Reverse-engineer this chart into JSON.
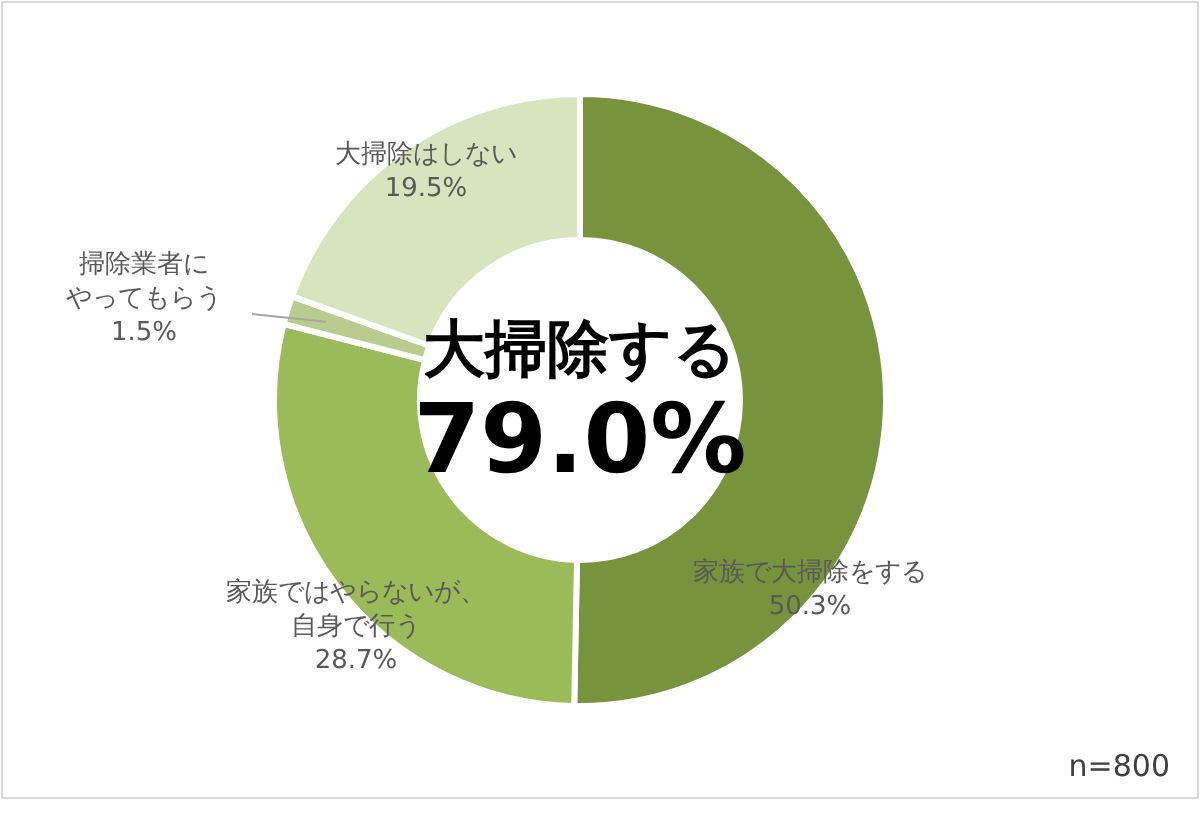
{
  "chart_data": {
    "type": "donut",
    "categories": [
      "家族で大掃除をする",
      "家族ではやらないが、自身で行う",
      "掃除業者にやってもらう",
      "大掃除はしない"
    ],
    "values": [
      50.3,
      28.7,
      1.5,
      19.5
    ],
    "colors": [
      "#77933c",
      "#9bbb59",
      "#b9cc8e",
      "#d7e4bd"
    ],
    "value_labels": [
      "50.3%",
      "28.7%",
      "1.5%",
      "19.5%"
    ],
    "annotations": [
      "大掃除する",
      "79.0%",
      "n=800"
    ],
    "legend": false
  }
}
